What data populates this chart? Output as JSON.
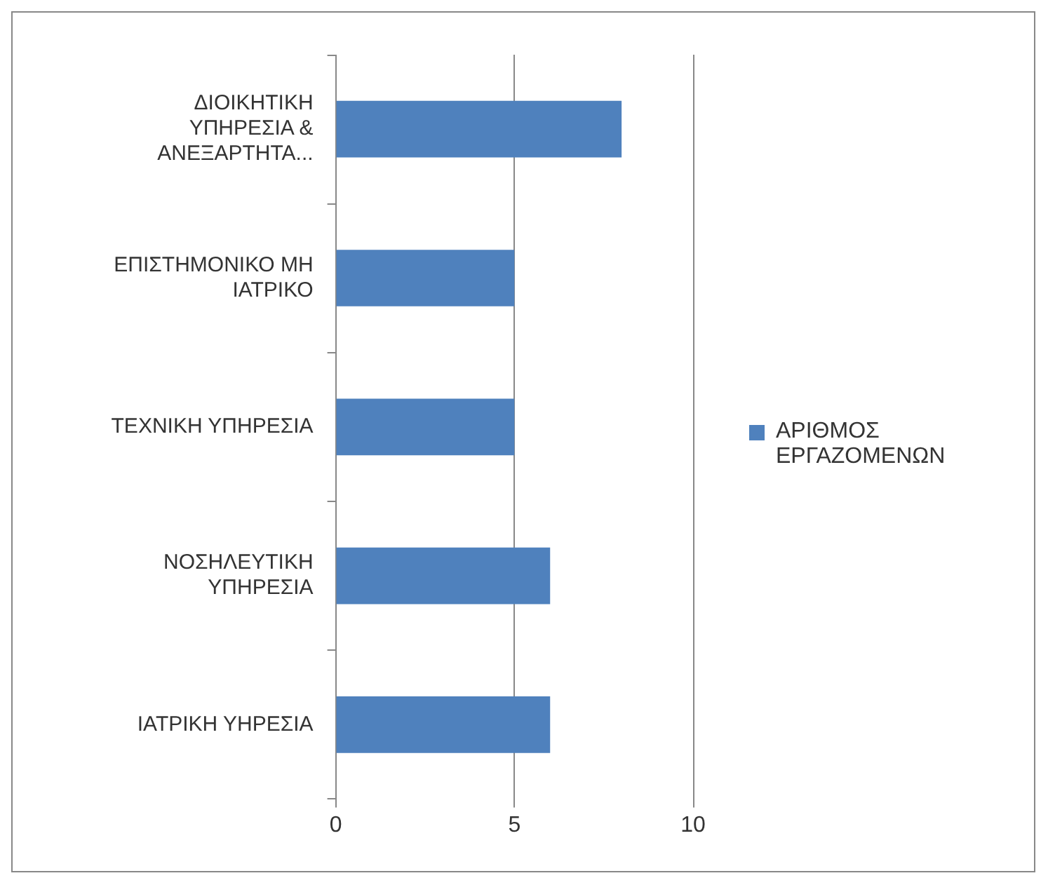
{
  "chart_data": {
    "type": "bar",
    "orientation": "horizontal",
    "categories": [
      "ΔΙΟΙΚΗΤΙΚΗ ΥΠΗΡΕΣΙΑ & ΑΝΕΞΑΡΤΗΤΑ...",
      "ΕΠΙΣΤΗΜΟΝΙΚΟ ΜΗ ΙΑΤΡΙΚΟ",
      "ΤΕΧΝΙΚΗ ΥΠΗΡΕΣΙΑ",
      "ΝΟΣΗΛΕΥΤΙΚΗ ΥΠΗΡΕΣΙΑ",
      "ΙΑΤΡΙΚΗ ΥΗΡΕΣΙΑ"
    ],
    "series": [
      {
        "name": "ΑΡΙΘΜΟΣ ΕΡΓΑΖΟΜΕΝΩΝ",
        "color": "#4f81bd",
        "values": [
          8,
          5,
          5,
          6,
          6
        ]
      }
    ],
    "xlim": [
      0,
      10
    ],
    "xticks": [
      0,
      5,
      10
    ],
    "grid": "x",
    "legend": "right"
  }
}
